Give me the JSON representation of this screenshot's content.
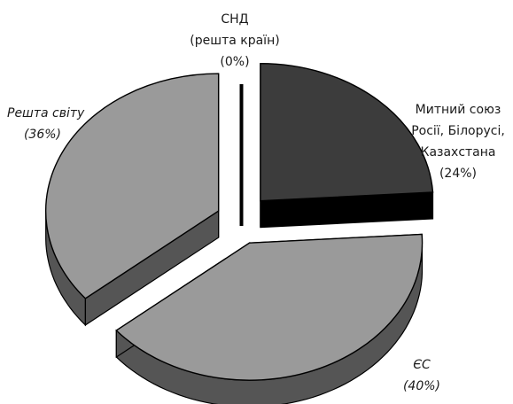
{
  "chart_data": {
    "type": "pie",
    "style": "3d-exploded",
    "slices": [
      {
        "label_lines": [
          "Митний союз",
          "Росії, Білорусі,",
          "Казахстана"
        ],
        "percent_text": "(24%)",
        "value": 24,
        "top_color": "#3c3c3c",
        "side_color": "#000000",
        "italic": false
      },
      {
        "label_lines": [
          "ЄС"
        ],
        "percent_text": "(40%)",
        "value": 40,
        "top_color": "#9a9a9a",
        "side_color": "#555555",
        "italic": true
      },
      {
        "label_lines": [
          "Решта світу"
        ],
        "percent_text": "(36%)",
        "value": 36,
        "top_color": "#9a9a9a",
        "side_color": "#555555",
        "italic": true
      },
      {
        "label_lines": [
          "СНД",
          "(решта країн)"
        ],
        "percent_text": "(0%)",
        "value": 0,
        "top_color": "#000000",
        "side_color": "#000000",
        "italic": false
      }
    ]
  }
}
